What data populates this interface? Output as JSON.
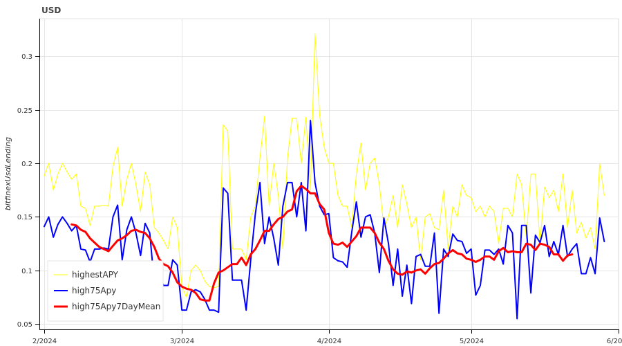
{
  "chart_data": {
    "type": "line",
    "title": "USD",
    "xlabel": "",
    "ylabel": "bitfinexUsdLending",
    "x_start": "2024-02-01",
    "x_end": "2024-05-29",
    "xlim": [
      "2024-01-31",
      "2024-06-01"
    ],
    "ylim": [
      0.045,
      0.335
    ],
    "x_ticks": [
      {
        "date": "2024-02-01",
        "label": "2/2024"
      },
      {
        "date": "2024-03-01",
        "label": "3/2024"
      },
      {
        "date": "2024-04-01",
        "label": "4/2024"
      },
      {
        "date": "2024-05-01",
        "label": "5/2024"
      },
      {
        "date": "2024-06-01",
        "label": "6/2024"
      }
    ],
    "y_ticks": [
      0.05,
      0.1,
      0.15,
      0.2,
      0.25,
      0.3
    ],
    "y_tick_labels": [
      "0.05",
      "0.1",
      "0.15",
      "0.2",
      "0.25",
      "0.3"
    ],
    "grid": true,
    "legend_position": "bottom-left",
    "series": [
      {
        "name": "highestAPY",
        "color": "#ffff00",
        "width": 1,
        "values": [
          0.188,
          0.2,
          0.175,
          0.19,
          0.2,
          0.192,
          0.185,
          0.19,
          0.16,
          0.158,
          0.142,
          0.16,
          0.16,
          0.161,
          0.16,
          0.197,
          0.215,
          0.16,
          0.185,
          0.2,
          0.18,
          0.155,
          0.192,
          0.18,
          0.14,
          0.135,
          0.128,
          0.12,
          0.15,
          0.14,
          0.085,
          0.075,
          0.1,
          0.105,
          0.1,
          0.09,
          0.085,
          0.084,
          0.085,
          0.236,
          0.23,
          0.12,
          0.12,
          0.12,
          0.11,
          0.15,
          0.16,
          0.205,
          0.244,
          0.16,
          0.2,
          0.17,
          0.12,
          0.205,
          0.242,
          0.242,
          0.2,
          0.243,
          0.175,
          0.321,
          0.245,
          0.215,
          0.2,
          0.2,
          0.17,
          0.16,
          0.16,
          0.14,
          0.19,
          0.219,
          0.175,
          0.2,
          0.205,
          0.18,
          0.14,
          0.15,
          0.17,
          0.14,
          0.18,
          0.162,
          0.14,
          0.15,
          0.11,
          0.15,
          0.153,
          0.14,
          0.138,
          0.175,
          0.12,
          0.16,
          0.15,
          0.18,
          0.17,
          0.168,
          0.155,
          0.16,
          0.15,
          0.16,
          0.155,
          0.125,
          0.158,
          0.158,
          0.15,
          0.19,
          0.18,
          0.13,
          0.19,
          0.19,
          0.125,
          0.178,
          0.168,
          0.175,
          0.155,
          0.19,
          0.14,
          0.175,
          0.135,
          0.145,
          0.13,
          0.14,
          0.12,
          0.2,
          0.17
        ]
      },
      {
        "name": "high75Apy",
        "color": "#0000ff",
        "width": 2,
        "values": [
          0.141,
          0.15,
          0.131,
          0.143,
          0.15,
          0.144,
          0.137,
          0.142,
          0.12,
          0.119,
          0.108,
          0.12,
          0.12,
          0.121,
          0.12,
          0.15,
          0.161,
          0.11,
          0.138,
          0.15,
          0.135,
          0.114,
          0.144,
          0.135,
          0.088,
          0.096,
          0.086,
          0.086,
          0.11,
          0.105,
          0.063,
          0.063,
          0.08,
          0.082,
          0.08,
          0.073,
          0.063,
          0.063,
          0.061,
          0.177,
          0.172,
          0.091,
          0.091,
          0.091,
          0.063,
          0.11,
          0.153,
          0.182,
          0.125,
          0.15,
          0.13,
          0.105,
          0.16,
          0.182,
          0.182,
          0.15,
          0.182,
          0.137,
          0.24,
          0.182,
          0.16,
          0.152,
          0.153,
          0.112,
          0.109,
          0.108,
          0.103,
          0.136,
          0.164,
          0.131,
          0.15,
          0.152,
          0.135,
          0.098,
          0.149,
          0.125,
          0.086,
          0.12,
          0.076,
          0.105,
          0.069,
          0.113,
          0.115,
          0.104,
          0.104,
          0.135,
          0.06,
          0.12,
          0.113,
          0.134,
          0.128,
          0.127,
          0.116,
          0.12,
          0.077,
          0.086,
          0.119,
          0.119,
          0.115,
          0.12,
          0.106,
          0.142,
          0.135,
          0.055,
          0.142,
          0.142,
          0.079,
          0.133,
          0.126,
          0.142,
          0.113,
          0.127,
          0.115,
          0.142,
          0.113,
          0.12,
          0.125,
          0.097,
          0.097,
          0.112,
          0.097,
          0.149,
          0.127
        ]
      },
      {
        "name": "high75Apy7DayMean",
        "color": "#ff0000",
        "width": 3,
        "start_index": 6,
        "values": [
          0.143,
          0.142,
          0.138,
          0.136,
          0.13,
          0.126,
          0.122,
          0.12,
          0.118,
          0.123,
          0.128,
          0.13,
          0.133,
          0.137,
          0.138,
          0.136,
          0.135,
          0.13,
          0.122,
          0.111,
          0.106,
          0.104,
          0.098,
          0.089,
          0.085,
          0.083,
          0.082,
          0.079,
          0.073,
          0.072,
          0.072,
          0.088,
          0.098,
          0.1,
          0.103,
          0.106,
          0.106,
          0.112,
          0.105,
          0.115,
          0.12,
          0.128,
          0.137,
          0.137,
          0.143,
          0.148,
          0.15,
          0.155,
          0.157,
          0.174,
          0.179,
          0.176,
          0.172,
          0.172,
          0.162,
          0.157,
          0.135,
          0.125,
          0.124,
          0.126,
          0.122,
          0.127,
          0.132,
          0.14,
          0.14,
          0.14,
          0.135,
          0.126,
          0.12,
          0.109,
          0.101,
          0.097,
          0.096,
          0.099,
          0.098,
          0.1,
          0.101,
          0.097,
          0.102,
          0.106,
          0.107,
          0.111,
          0.116,
          0.119,
          0.116,
          0.115,
          0.111,
          0.11,
          0.108,
          0.11,
          0.113,
          0.113,
          0.11,
          0.118,
          0.121,
          0.117,
          0.118,
          0.117,
          0.117,
          0.125,
          0.124,
          0.119,
          0.125,
          0.124,
          0.122,
          0.115,
          0.115,
          0.109,
          0.114,
          0.115
        ]
      }
    ]
  }
}
